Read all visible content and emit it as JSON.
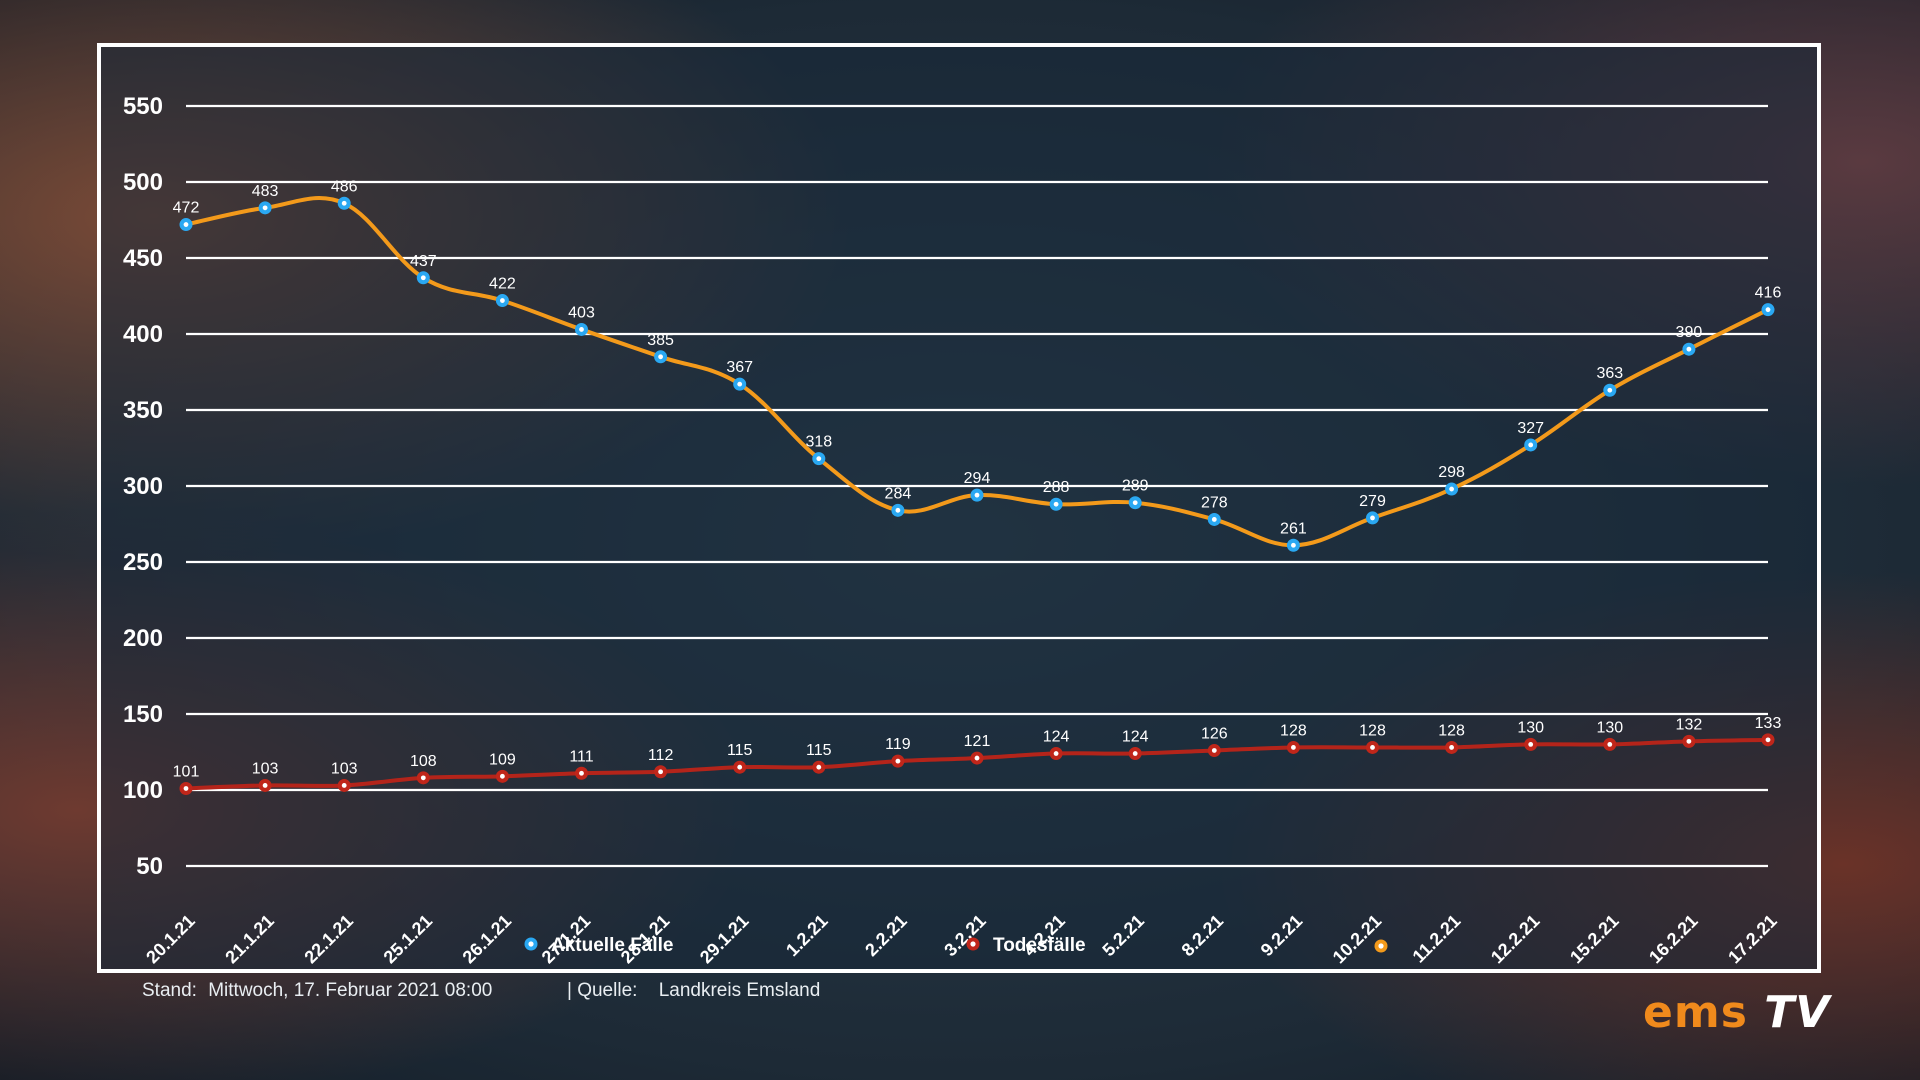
{
  "chart_data": {
    "type": "line",
    "categories": [
      "20.1.21",
      "21.1.21",
      "22.1.21",
      "25.1.21",
      "26.1.21",
      "27.1.21",
      "28.1.21",
      "29.1.21",
      "1.2.21",
      "2.2.21",
      "3.2.21",
      "4.2.21",
      "5.2.21",
      "8.2.21",
      "9.2.21",
      "10.2.21",
      "11.2.21",
      "12.2.21",
      "15.2.21",
      "16.2.21",
      "17.2.21"
    ],
    "series": [
      {
        "name": "Aktuelle Fälle",
        "color": "#f39a1b",
        "marker": "#2aa8f2",
        "values": [
          472,
          483,
          486,
          437,
          422,
          403,
          385,
          367,
          318,
          284,
          294,
          288,
          289,
          278,
          261,
          279,
          298,
          327,
          363,
          390,
          416
        ]
      },
      {
        "name": "Todesfälle",
        "color": "#b4241a",
        "marker": "#c0261a",
        "values": [
          101,
          103,
          103,
          108,
          109,
          111,
          112,
          115,
          115,
          119,
          121,
          124,
          124,
          126,
          128,
          128,
          128,
          130,
          130,
          132,
          133
        ]
      }
    ],
    "legend_extra_marker_color": "#f39a1b",
    "yticks": [
      50,
      100,
      150,
      200,
      250,
      300,
      350,
      400,
      450,
      500,
      550
    ],
    "ylim": [
      50,
      550
    ],
    "grid": true,
    "legend_position": "bottom"
  },
  "footer": {
    "stand_label": "Stand:",
    "stand_value": "Mittwoch, 17. Februar 2021 08:00",
    "source_label": "| Quelle:",
    "source_value": "Landkreis Emsland"
  },
  "logo": {
    "part1": "ems",
    "part2": "TV"
  }
}
